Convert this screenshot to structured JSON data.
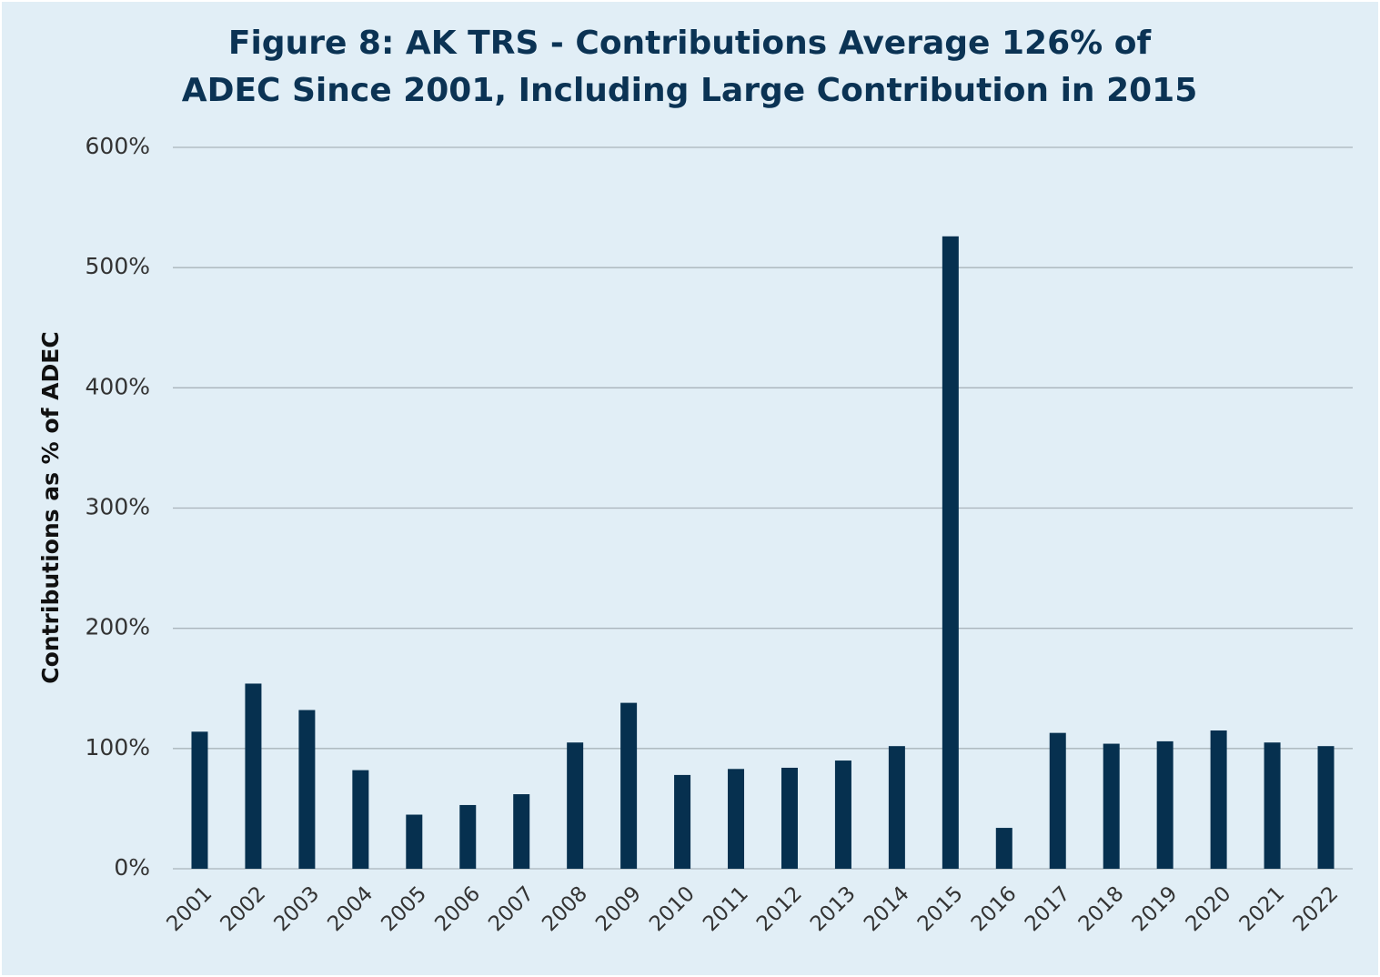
{
  "chart_data": {
    "type": "bar",
    "title_label": "Figure 8:",
    "title_lines": [
      "AK TRS - Contributions Average 126% of",
      "ADEC Since 2001, Including Large Contribution in 2015"
    ],
    "y_label": "Contributions as % of ADEC",
    "categories": [
      "2001",
      "2002",
      "2003",
      "2004",
      "2005",
      "2006",
      "2007",
      "2008",
      "2009",
      "2010",
      "2011",
      "2012",
      "2013",
      "2014",
      "2015",
      "2016",
      "2017",
      "2018",
      "2019",
      "2020",
      "2021",
      "2022"
    ],
    "values": [
      114,
      154,
      132,
      82,
      45,
      53,
      62,
      105,
      138,
      78,
      83,
      84,
      90,
      102,
      526,
      34,
      113,
      104,
      106,
      115,
      105,
      102
    ],
    "color": "#06304f",
    "ylim": [
      0,
      600
    ],
    "yticks": [
      {
        "value": 0,
        "label": "0%"
      },
      {
        "value": 100,
        "label": "100%"
      },
      {
        "value": 200,
        "label": "200%"
      },
      {
        "value": 300,
        "label": "300%"
      },
      {
        "value": 400,
        "label": "400%"
      },
      {
        "value": 500,
        "label": "500%"
      },
      {
        "value": 600,
        "label": "600%"
      }
    ],
    "grid": true
  }
}
